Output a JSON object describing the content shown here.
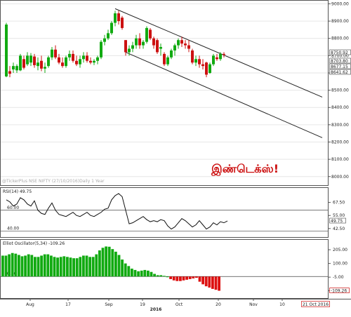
{
  "chart_data": [
    {
      "type": "candlestick",
      "watermark": "@TickerPlus NSE NIFTY (27/10/2016)Daily 1 Year",
      "year_label": "2016",
      "overlay_text": "இண்டெக்ஸ்!",
      "overlay_color": "#cc1111",
      "date_stamp": "21 Oct 2016",
      "x_tick_labels": [
        "Aug",
        "17",
        "Sep",
        "19",
        "Oct",
        "20",
        "Nov",
        "10",
        "21 Oct 2016"
      ],
      "y_tick_labels": [
        "9000.00",
        "8900.00",
        "8800.00",
        "8700.00",
        "8600.00",
        "8500.00",
        "8400.00",
        "8300.00",
        "8200.00",
        "8100.00",
        "8000.00"
      ],
      "ylim": [
        7995,
        9010
      ],
      "price_value_labels": [
        "8750.92",
        "8703.80",
        "8677.15",
        "8641.62"
      ],
      "up_color": "#11aa11",
      "down_color": "#cc1111",
      "candles": [
        {
          "o": 8580,
          "h": 8890,
          "l": 8575,
          "c": 8880
        },
        {
          "o": 8610,
          "h": 8640,
          "l": 8575,
          "c": 8595
        },
        {
          "o": 8620,
          "h": 8660,
          "l": 8600,
          "c": 8640
        },
        {
          "o": 8615,
          "h": 8650,
          "l": 8600,
          "c": 8640
        },
        {
          "o": 8615,
          "h": 8710,
          "l": 8610,
          "c": 8700
        },
        {
          "o": 8680,
          "h": 8700,
          "l": 8620,
          "c": 8630
        },
        {
          "o": 8650,
          "h": 8720,
          "l": 8640,
          "c": 8700
        },
        {
          "o": 8660,
          "h": 8715,
          "l": 8640,
          "c": 8700
        },
        {
          "o": 8695,
          "h": 8710,
          "l": 8630,
          "c": 8645
        },
        {
          "o": 8640,
          "h": 8690,
          "l": 8615,
          "c": 8660
        },
        {
          "o": 8670,
          "h": 8700,
          "l": 8610,
          "c": 8625
        },
        {
          "o": 8625,
          "h": 8660,
          "l": 8600,
          "c": 8635
        },
        {
          "o": 8640,
          "h": 8700,
          "l": 8630,
          "c": 8690
        },
        {
          "o": 8690,
          "h": 8750,
          "l": 8675,
          "c": 8735
        },
        {
          "o": 8735,
          "h": 8760,
          "l": 8680,
          "c": 8690
        },
        {
          "o": 8690,
          "h": 8710,
          "l": 8650,
          "c": 8660
        },
        {
          "o": 8660,
          "h": 8690,
          "l": 8630,
          "c": 8640
        },
        {
          "o": 8640,
          "h": 8700,
          "l": 8630,
          "c": 8690
        },
        {
          "o": 8690,
          "h": 8730,
          "l": 8670,
          "c": 8710
        },
        {
          "o": 8710,
          "h": 8730,
          "l": 8660,
          "c": 8670
        },
        {
          "o": 8670,
          "h": 8700,
          "l": 8640,
          "c": 8650
        },
        {
          "o": 8650,
          "h": 8700,
          "l": 8630,
          "c": 8680
        },
        {
          "o": 8680,
          "h": 8720,
          "l": 8660,
          "c": 8700
        },
        {
          "o": 8700,
          "h": 8720,
          "l": 8660,
          "c": 8670
        },
        {
          "o": 8670,
          "h": 8690,
          "l": 8650,
          "c": 8660
        },
        {
          "o": 8660,
          "h": 8680,
          "l": 8645,
          "c": 8670
        },
        {
          "o": 8670,
          "h": 8700,
          "l": 8650,
          "c": 8690
        },
        {
          "o": 8690,
          "h": 8790,
          "l": 8680,
          "c": 8780
        },
        {
          "o": 8780,
          "h": 8820,
          "l": 8760,
          "c": 8800
        },
        {
          "o": 8800,
          "h": 8850,
          "l": 8790,
          "c": 8830
        },
        {
          "o": 8830,
          "h": 8900,
          "l": 8820,
          "c": 8890
        },
        {
          "o": 8890,
          "h": 8960,
          "l": 8870,
          "c": 8945
        },
        {
          "o": 8945,
          "h": 8960,
          "l": 8880,
          "c": 8900
        },
        {
          "o": 8920,
          "h": 8930,
          "l": 8850,
          "c": 8860
        },
        {
          "o": 8790,
          "h": 8790,
          "l": 8700,
          "c": 8720
        },
        {
          "o": 8720,
          "h": 8760,
          "l": 8700,
          "c": 8740
        },
        {
          "o": 8740,
          "h": 8780,
          "l": 8720,
          "c": 8760
        },
        {
          "o": 8760,
          "h": 8820,
          "l": 8740,
          "c": 8800
        },
        {
          "o": 8800,
          "h": 8830,
          "l": 8740,
          "c": 8760
        },
        {
          "o": 8760,
          "h": 8790,
          "l": 8740,
          "c": 8780
        },
        {
          "o": 8780,
          "h": 8870,
          "l": 8770,
          "c": 8860
        },
        {
          "o": 8850,
          "h": 8860,
          "l": 8790,
          "c": 8800
        },
        {
          "o": 8800,
          "h": 8810,
          "l": 8740,
          "c": 8760
        },
        {
          "o": 8790,
          "h": 8800,
          "l": 8710,
          "c": 8720
        },
        {
          "o": 8740,
          "h": 8770,
          "l": 8700,
          "c": 8750
        },
        {
          "o": 8710,
          "h": 8720,
          "l": 8640,
          "c": 8650
        },
        {
          "o": 8650,
          "h": 8700,
          "l": 8640,
          "c": 8690
        },
        {
          "o": 8690,
          "h": 8740,
          "l": 8680,
          "c": 8730
        },
        {
          "o": 8730,
          "h": 8770,
          "l": 8700,
          "c": 8760
        },
        {
          "o": 8760,
          "h": 8800,
          "l": 8740,
          "c": 8790
        },
        {
          "o": 8790,
          "h": 8810,
          "l": 8750,
          "c": 8770
        },
        {
          "o": 8770,
          "h": 8790,
          "l": 8740,
          "c": 8760
        },
        {
          "o": 8760,
          "h": 8790,
          "l": 8720,
          "c": 8740
        },
        {
          "o": 8730,
          "h": 8740,
          "l": 8650,
          "c": 8660
        },
        {
          "o": 8660,
          "h": 8700,
          "l": 8640,
          "c": 8680
        },
        {
          "o": 8680,
          "h": 8700,
          "l": 8630,
          "c": 8650
        },
        {
          "o": 8650,
          "h": 8680,
          "l": 8620,
          "c": 8640
        },
        {
          "o": 8660,
          "h": 8665,
          "l": 8575,
          "c": 8590
        },
        {
          "o": 8600,
          "h": 8660,
          "l": 8595,
          "c": 8650
        },
        {
          "o": 8650,
          "h": 8710,
          "l": 8640,
          "c": 8700
        },
        {
          "o": 8690,
          "h": 8710,
          "l": 8670,
          "c": 8680
        },
        {
          "o": 8680,
          "h": 8720,
          "l": 8670,
          "c": 8710
        },
        {
          "o": 8710,
          "h": 8720,
          "l": 8690,
          "c": 8705
        }
      ],
      "trendlines": [
        {
          "from": {
            "i": 31,
            "v": 8972
          },
          "to": {
            "i": 90,
            "v": 8460
          }
        },
        {
          "from": {
            "i": 34,
            "v": 8720
          },
          "to": {
            "i": 90,
            "v": 8225
          }
        }
      ]
    },
    {
      "type": "line",
      "title": "RSI(14) 49.75",
      "ylim": [
        35,
        80
      ],
      "y_tick_labels": [
        "67.50",
        "55.00",
        "42.50"
      ],
      "level_labels": [
        "60.00",
        "40.00"
      ],
      "levels": [
        60,
        40
      ],
      "value_label": "49.75",
      "values": [
        70,
        68,
        64,
        66,
        72,
        70,
        66,
        64,
        69,
        60,
        57,
        56,
        62,
        67,
        60,
        56,
        55,
        54,
        56,
        58,
        55,
        54,
        56,
        58,
        55,
        54,
        56,
        58,
        61,
        62,
        70,
        74,
        76,
        73,
        60,
        47,
        48,
        50,
        52,
        54,
        51,
        49,
        50,
        49,
        51,
        50,
        45,
        42,
        44,
        48,
        52,
        50,
        47,
        44,
        46,
        50,
        46,
        42,
        44,
        48,
        46,
        49,
        48,
        49.75
      ]
    },
    {
      "type": "bar",
      "title": "Elliot Oscillator(5,34) -109.26",
      "ylim": [
        -160,
        270
      ],
      "y_tick_labels": [
        "205.00",
        "100.00",
        "-5.00",
        "-109.26"
      ],
      "zero_label": "0.00",
      "value_label": "-109.26",
      "up_color": "#11aa11",
      "down_color": "#dd1111",
      "values": [
        160,
        160,
        170,
        180,
        175,
        165,
        155,
        160,
        170,
        165,
        150,
        150,
        160,
        170,
        170,
        160,
        150,
        145,
        150,
        155,
        150,
        145,
        140,
        140,
        150,
        160,
        160,
        150,
        150,
        170,
        200,
        220,
        230,
        228,
        210,
        190,
        165,
        130,
        100,
        80,
        60,
        50,
        40,
        45,
        50,
        45,
        35,
        20,
        10,
        10,
        5,
        0,
        -20,
        -30,
        -35,
        -35,
        -30,
        -25,
        -20,
        -15,
        -10,
        -40,
        -60,
        -75,
        -85,
        -95,
        -102,
        -109.26
      ]
    }
  ]
}
